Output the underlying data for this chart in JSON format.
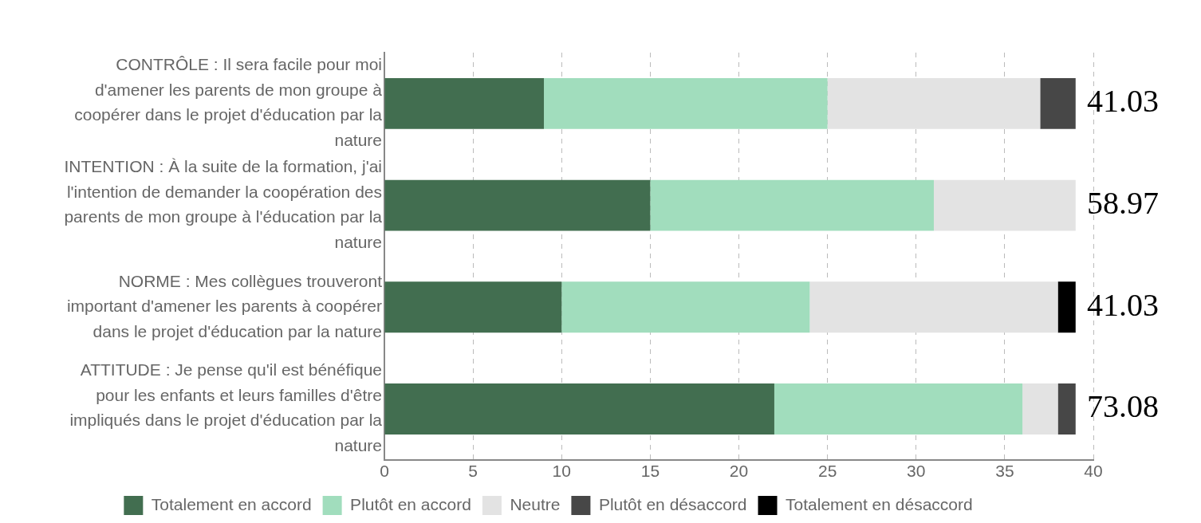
{
  "chart_data": {
    "type": "bar",
    "orientation": "horizontal",
    "stacked": true,
    "categories": [
      "CONTRÔLE : Il sera facile pour moi d'amener les parents de mon groupe à coopérer dans le projet d'éducation par la nature",
      "INTENTION : À la suite de la formation, j'ai l'intention de demander la coopération des parents de mon groupe à l'éducation par la nature",
      "NORME : Mes collègues trouveront important d'amener les parents à coopérer dans le projet d'éducation par la nature",
      "ATTITUDE : Je pense qu'il est bénéfique pour les enfants et leurs familles d'être impliqués dans le projet d'éducation par la nature"
    ],
    "series": [
      {
        "name": "Totalement en accord",
        "color": "#426e50",
        "values": [
          9,
          15,
          10,
          22
        ]
      },
      {
        "name": "Plutôt en accord",
        "color": "#a1ddbd",
        "values": [
          16,
          16,
          14,
          14
        ]
      },
      {
        "name": "Neutre",
        "color": "#e3e3e3",
        "values": [
          12,
          8,
          14,
          2
        ]
      },
      {
        "name": "Plutôt en désaccord",
        "color": "#474747",
        "values": [
          2,
          null,
          null,
          1
        ]
      },
      {
        "name": "Totalement en désaccord",
        "color": "#000000",
        "values": [
          null,
          null,
          1,
          null
        ]
      }
    ],
    "xlim": [
      0,
      40
    ],
    "xticks": [
      0,
      5,
      10,
      15,
      20,
      25,
      30,
      35,
      40
    ],
    "grid": "x",
    "legend": "bottom",
    "annotations": [
      "41.03",
      "58.97",
      "41.03",
      "73.08"
    ]
  }
}
